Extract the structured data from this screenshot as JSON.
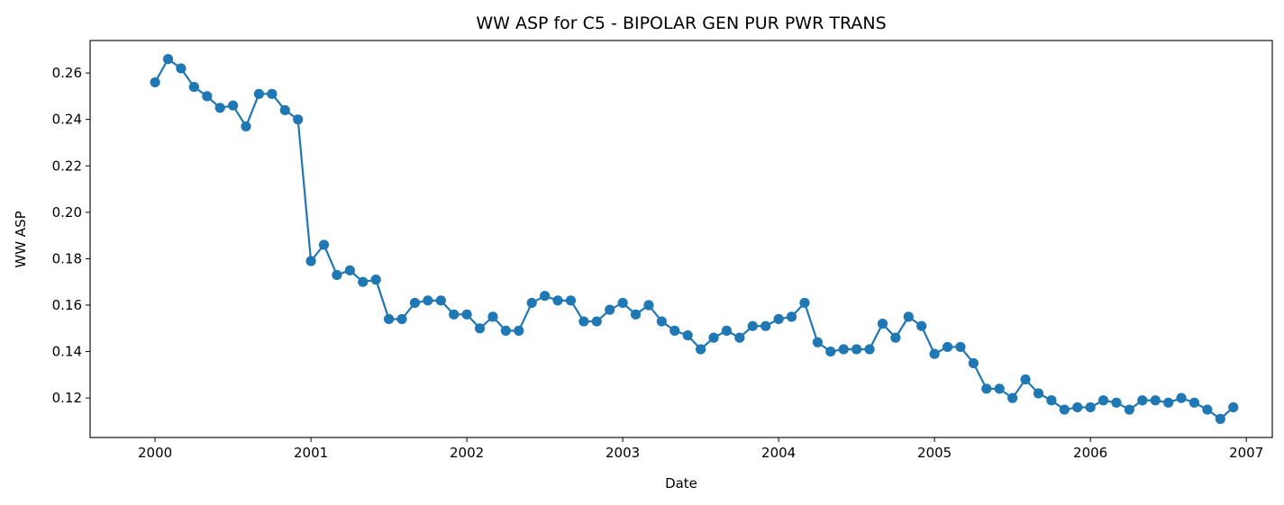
{
  "chart_data": {
    "type": "line",
    "title": "WW ASP for C5 - BIPOLAR GEN PUR PWR TRANS",
    "xlabel": "Date",
    "ylabel": "WW ASP",
    "x_ticks": [
      "2000",
      "2001",
      "2002",
      "2003",
      "2004",
      "2005",
      "2006",
      "2007"
    ],
    "y_ticks": [
      "0.12",
      "0.14",
      "0.16",
      "0.18",
      "0.20",
      "0.22",
      "0.24",
      "0.26"
    ],
    "xlim": [
      "1999-08",
      "2007-03"
    ],
    "ylim": [
      0.103,
      0.274
    ],
    "grid": false,
    "series_color": "#1f77b4",
    "series": [
      {
        "marker": "circle",
        "x": [
          "2000-01",
          "2000-02",
          "2000-03",
          "2000-04",
          "2000-05",
          "2000-06",
          "2000-07",
          "2000-08",
          "2000-09",
          "2000-10",
          "2000-11",
          "2000-12",
          "2001-01",
          "2001-02",
          "2001-03",
          "2001-04",
          "2001-05",
          "2001-06",
          "2001-07",
          "2001-08",
          "2001-09",
          "2001-10",
          "2001-11",
          "2001-12",
          "2002-01",
          "2002-02",
          "2002-03",
          "2002-04",
          "2002-05",
          "2002-06",
          "2002-07",
          "2002-08",
          "2002-09",
          "2002-10",
          "2002-11",
          "2002-12",
          "2003-01",
          "2003-02",
          "2003-03",
          "2003-04",
          "2003-05",
          "2003-06",
          "2003-07",
          "2003-08",
          "2003-09",
          "2003-10",
          "2003-11",
          "2003-12",
          "2004-01",
          "2004-02",
          "2004-03",
          "2004-04",
          "2004-05",
          "2004-06",
          "2004-07",
          "2004-08",
          "2004-09",
          "2004-10",
          "2004-11",
          "2004-12",
          "2005-01",
          "2005-02",
          "2005-03",
          "2005-04",
          "2005-05",
          "2005-06",
          "2005-07",
          "2005-08",
          "2005-09",
          "2005-10",
          "2005-11",
          "2005-12",
          "2006-01",
          "2006-02",
          "2006-03",
          "2006-04",
          "2006-05",
          "2006-06",
          "2006-07",
          "2006-08",
          "2006-09",
          "2006-10",
          "2006-11",
          "2006-12"
        ],
        "values": [
          0.256,
          0.266,
          0.262,
          0.254,
          0.25,
          0.245,
          0.246,
          0.237,
          0.251,
          0.251,
          0.244,
          0.24,
          0.179,
          0.186,
          0.173,
          0.175,
          0.17,
          0.171,
          0.154,
          0.154,
          0.161,
          0.162,
          0.162,
          0.156,
          0.156,
          0.15,
          0.155,
          0.149,
          0.149,
          0.161,
          0.164,
          0.162,
          0.162,
          0.153,
          0.153,
          0.158,
          0.161,
          0.156,
          0.16,
          0.153,
          0.149,
          0.147,
          0.141,
          0.146,
          0.149,
          0.146,
          0.151,
          0.151,
          0.154,
          0.155,
          0.161,
          0.144,
          0.14,
          0.141,
          0.141,
          0.141,
          0.152,
          0.146,
          0.155,
          0.151,
          0.139,
          0.142,
          0.142,
          0.135,
          0.124,
          0.124,
          0.12,
          0.128,
          0.122,
          0.119,
          0.115,
          0.116,
          0.116,
          0.119,
          0.118,
          0.115,
          0.119,
          0.119,
          0.118,
          0.12,
          0.118,
          0.115,
          0.111,
          0.116
        ]
      }
    ]
  }
}
